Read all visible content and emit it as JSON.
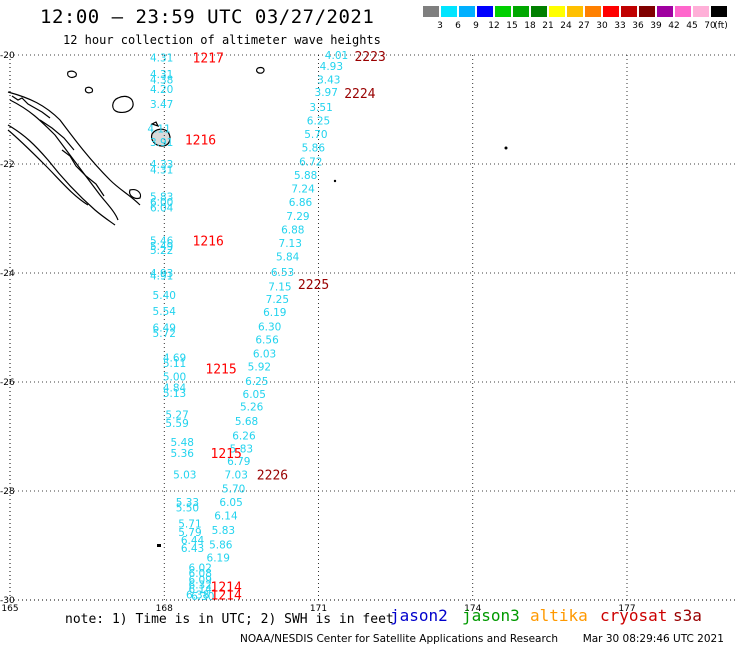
{
  "header": {
    "title": "12:00 – 23:59 UTC 03/27/2021",
    "subtitle": "12 hour collection of altimeter wave heights"
  },
  "colorbar": {
    "colors": [
      "#7f7f7f",
      "#00e5ff",
      "#00b0ff",
      "#0000ff",
      "#00d000",
      "#00a800",
      "#008000",
      "#ffff00",
      "#ffc000",
      "#ff8000",
      "#ff0000",
      "#c00000",
      "#800000",
      "#a000a0",
      "#ff66cc",
      "#ffb0d8",
      "#000000"
    ],
    "labels": [
      "3",
      "6",
      "9",
      "12",
      "15",
      "18",
      "21",
      "24",
      "27",
      "30",
      "33",
      "36",
      "39",
      "42",
      "45",
      "70",
      "(ft)"
    ]
  },
  "axes": {
    "lat_labels": [
      "-20",
      "-22",
      "-24",
      "-26",
      "-28",
      "-30"
    ],
    "lon_labels": [
      "165",
      "168",
      "171",
      "174",
      "177"
    ]
  },
  "note": "note: 1) Time is in UTC; 2) SWH is in feet",
  "legend": [
    {
      "name": "jason2",
      "color": "#0000cc"
    },
    {
      "name": "jason3",
      "color": "#009900"
    },
    {
      "name": "altika",
      "color": "#ff9900"
    },
    {
      "name": "cryosat",
      "color": "#cc0000"
    },
    {
      "name": "s3a",
      "color": "#990000"
    }
  ],
  "footer": {
    "credit": "NOAA/NESDIS Center for Satellite Applications and Research",
    "timestamp": "Mar 30 08:29:46 UTC 2021"
  },
  "time_labels": [
    {
      "text": "1217",
      "color": "#ff0000",
      "lon": 168.55,
      "lat": -20.05
    },
    {
      "text": "1216",
      "color": "#ff0000",
      "lon": 168.4,
      "lat": -21.55
    },
    {
      "text": "1216",
      "color": "#ff0000",
      "lon": 168.55,
      "lat": -23.4
    },
    {
      "text": "1215",
      "color": "#ff0000",
      "lon": 168.8,
      "lat": -25.75
    },
    {
      "text": "1215",
      "color": "#ff0000",
      "lon": 168.9,
      "lat": -27.3
    },
    {
      "text": "1214",
      "color": "#ff0000",
      "lon": 168.9,
      "lat": -29.75
    },
    {
      "text": "1214",
      "color": "#ff0000",
      "lon": 168.9,
      "lat": -29.9
    },
    {
      "text": "2223",
      "color": "#990000",
      "lon": 171.7,
      "lat": -20.02
    },
    {
      "text": "2224",
      "color": "#990000",
      "lon": 171.5,
      "lat": -20.7
    },
    {
      "text": "2225",
      "color": "#990000",
      "lon": 170.6,
      "lat": -24.2
    },
    {
      "text": "2226",
      "color": "#990000",
      "lon": 169.8,
      "lat": -27.7
    }
  ],
  "track_west": {
    "color": "#22d3ee",
    "points": [
      {
        "lon": 167.95,
        "lat": -20.05,
        "swh": "4.31"
      },
      {
        "lon": 167.95,
        "lat": -20.35,
        "swh": "4.31"
      },
      {
        "lon": 167.95,
        "lat": -20.45,
        "swh": "4.38"
      },
      {
        "lon": 167.95,
        "lat": -20.62,
        "swh": "4.20"
      },
      {
        "lon": 167.95,
        "lat": -20.9,
        "swh": "3.47"
      },
      {
        "lon": 167.9,
        "lat": -21.35,
        "swh": "4.11"
      },
      {
        "lon": 167.95,
        "lat": -21.6,
        "swh": "3.91"
      },
      {
        "lon": 167.95,
        "lat": -22.0,
        "swh": "4.33"
      },
      {
        "lon": 167.95,
        "lat": -22.1,
        "swh": "4.31"
      },
      {
        "lon": 167.95,
        "lat": -22.6,
        "swh": "5.83"
      },
      {
        "lon": 167.95,
        "lat": -22.7,
        "swh": "6.00"
      },
      {
        "lon": 167.95,
        "lat": -22.8,
        "swh": "6.04"
      },
      {
        "lon": 167.95,
        "lat": -23.4,
        "swh": "5.46"
      },
      {
        "lon": 167.95,
        "lat": -23.5,
        "swh": "5.49"
      },
      {
        "lon": 167.95,
        "lat": -23.58,
        "swh": "5.22"
      },
      {
        "lon": 167.95,
        "lat": -24.0,
        "swh": "4.93"
      },
      {
        "lon": 167.95,
        "lat": -24.05,
        "swh": "4.91"
      },
      {
        "lon": 168.0,
        "lat": -24.4,
        "swh": "5.40"
      },
      {
        "lon": 168.0,
        "lat": -24.7,
        "swh": "5.54"
      },
      {
        "lon": 168.0,
        "lat": -25.0,
        "swh": "6.49"
      },
      {
        "lon": 168.0,
        "lat": -25.1,
        "swh": "5.72"
      },
      {
        "lon": 168.2,
        "lat": -25.55,
        "swh": "4.69"
      },
      {
        "lon": 168.2,
        "lat": -25.65,
        "swh": "5.11"
      },
      {
        "lon": 168.2,
        "lat": -25.9,
        "swh": "5.00"
      },
      {
        "lon": 168.2,
        "lat": -26.1,
        "swh": "4.84"
      },
      {
        "lon": 168.2,
        "lat": -26.2,
        "swh": "5.13"
      },
      {
        "lon": 168.25,
        "lat": -26.6,
        "swh": "5.27"
      },
      {
        "lon": 168.25,
        "lat": -26.75,
        "swh": "5.59"
      },
      {
        "lon": 168.35,
        "lat": -27.1,
        "swh": "5.48"
      },
      {
        "lon": 168.35,
        "lat": -27.3,
        "swh": "5.36"
      },
      {
        "lon": 168.4,
        "lat": -27.7,
        "swh": "5.03"
      },
      {
        "lon": 168.45,
        "lat": -28.2,
        "swh": "5.33"
      },
      {
        "lon": 168.45,
        "lat": -28.3,
        "swh": "5.50"
      },
      {
        "lon": 168.5,
        "lat": -28.6,
        "swh": "5.71"
      },
      {
        "lon": 168.5,
        "lat": -28.75,
        "swh": "5.79"
      },
      {
        "lon": 168.55,
        "lat": -28.9,
        "swh": "6.44"
      },
      {
        "lon": 168.55,
        "lat": -29.05,
        "swh": "6.43"
      },
      {
        "lon": 168.7,
        "lat": -29.4,
        "swh": "6.02"
      },
      {
        "lon": 168.7,
        "lat": -29.5,
        "swh": "6.08"
      },
      {
        "lon": 168.7,
        "lat": -29.62,
        "swh": "6.09"
      },
      {
        "lon": 168.7,
        "lat": -29.72,
        "swh": "6.32"
      },
      {
        "lon": 168.7,
        "lat": -29.8,
        "swh": "6.14"
      },
      {
        "lon": 168.65,
        "lat": -29.9,
        "swh": "6.38"
      },
      {
        "lon": 168.75,
        "lat": -29.93,
        "swh": "6.30"
      }
    ]
  },
  "track_east": {
    "color": "#22d3ee",
    "points": [
      {
        "lon": 171.35,
        "lat": -20.0,
        "swh": "4.01"
      },
      {
        "lon": 171.25,
        "lat": -20.2,
        "swh": "4.93"
      },
      {
        "lon": 171.2,
        "lat": -20.45,
        "swh": "3.43"
      },
      {
        "lon": 171.15,
        "lat": -20.68,
        "swh": "3.97"
      },
      {
        "lon": 171.05,
        "lat": -20.95,
        "swh": "3.51"
      },
      {
        "lon": 171.0,
        "lat": -21.2,
        "swh": "6.25"
      },
      {
        "lon": 170.95,
        "lat": -21.45,
        "swh": "5.70"
      },
      {
        "lon": 170.9,
        "lat": -21.7,
        "swh": "5.86"
      },
      {
        "lon": 170.85,
        "lat": -21.95,
        "swh": "6.72"
      },
      {
        "lon": 170.75,
        "lat": -22.2,
        "swh": "5.88"
      },
      {
        "lon": 170.7,
        "lat": -22.45,
        "swh": "7.24"
      },
      {
        "lon": 170.65,
        "lat": -22.7,
        "swh": "6.86"
      },
      {
        "lon": 170.6,
        "lat": -22.95,
        "swh": "7.29"
      },
      {
        "lon": 170.5,
        "lat": -23.2,
        "swh": "6.88"
      },
      {
        "lon": 170.45,
        "lat": -23.45,
        "swh": "7.13"
      },
      {
        "lon": 170.4,
        "lat": -23.7,
        "swh": "5.84"
      },
      {
        "lon": 170.3,
        "lat": -23.98,
        "swh": "6.53"
      },
      {
        "lon": 170.25,
        "lat": -24.25,
        "swh": "7.15"
      },
      {
        "lon": 170.2,
        "lat": -24.48,
        "swh": "7.25"
      },
      {
        "lon": 170.15,
        "lat": -24.72,
        "swh": "6.19"
      },
      {
        "lon": 170.05,
        "lat": -24.98,
        "swh": "6.30"
      },
      {
        "lon": 170.0,
        "lat": -25.22,
        "swh": "6.56"
      },
      {
        "lon": 169.95,
        "lat": -25.48,
        "swh": "6.03"
      },
      {
        "lon": 169.85,
        "lat": -25.72,
        "swh": "5.92"
      },
      {
        "lon": 169.8,
        "lat": -25.98,
        "swh": "6.25"
      },
      {
        "lon": 169.75,
        "lat": -26.22,
        "swh": "6.05"
      },
      {
        "lon": 169.7,
        "lat": -26.45,
        "swh": "5.26"
      },
      {
        "lon": 169.6,
        "lat": -26.72,
        "swh": "5.68"
      },
      {
        "lon": 169.55,
        "lat": -26.98,
        "swh": "6.26"
      },
      {
        "lon": 169.5,
        "lat": -27.22,
        "swh": "5.83"
      },
      {
        "lon": 169.45,
        "lat": -27.45,
        "swh": "6.79"
      },
      {
        "lon": 169.4,
        "lat": -27.7,
        "swh": "7.03"
      },
      {
        "lon": 169.35,
        "lat": -27.95,
        "swh": "5.70"
      },
      {
        "lon": 169.3,
        "lat": -28.2,
        "swh": "6.05"
      },
      {
        "lon": 169.2,
        "lat": -28.45,
        "swh": "6.14"
      },
      {
        "lon": 169.15,
        "lat": -28.72,
        "swh": "5.83"
      },
      {
        "lon": 169.1,
        "lat": -28.98,
        "swh": "5.86"
      },
      {
        "lon": 169.05,
        "lat": -29.22,
        "swh": "6.19"
      }
    ]
  }
}
